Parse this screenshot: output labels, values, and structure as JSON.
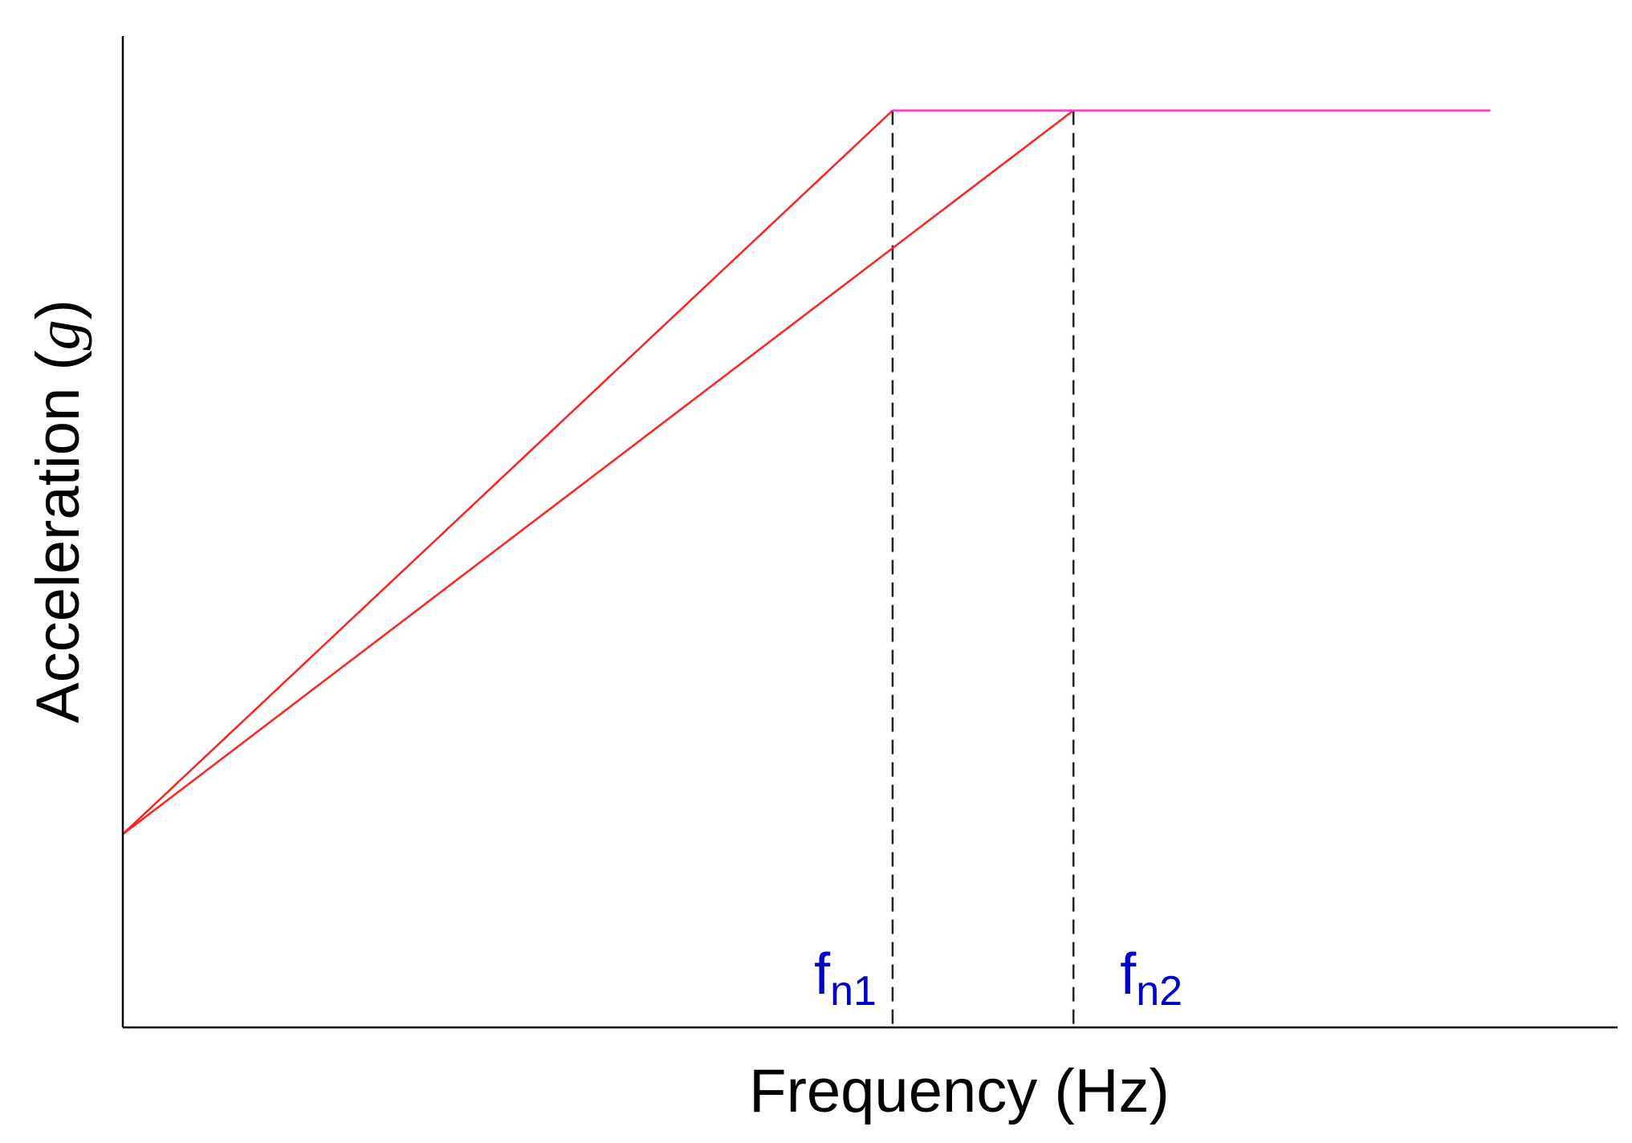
{
  "chart_data": {
    "type": "line",
    "title": "",
    "xlabel": "Frequency (Hz)",
    "ylabel": {
      "prefix": "Acceleration (",
      "symbol": "g",
      "suffix": ")"
    },
    "xlim": [
      0,
      1
    ],
    "ylim": [
      0,
      1
    ],
    "grid": false,
    "legend": "none",
    "series": [
      {
        "color": "#ff2020",
        "x": [
          0,
          0.515
        ],
        "y": [
          0.195,
          0.925
        ]
      },
      {
        "color": "#ff2020",
        "x": [
          0,
          0.636
        ],
        "y": [
          0.195,
          0.925
        ]
      },
      {
        "color": "#ff30d0",
        "x": [
          0.515,
          0.915
        ],
        "y": [
          0.925,
          0.925
        ]
      }
    ],
    "reference_lines": [
      {
        "x": 0.515,
        "style": "dashed",
        "color": "#222222"
      },
      {
        "x": 0.636,
        "style": "dashed",
        "color": "#222222"
      }
    ],
    "annotations": [
      {
        "base": "f",
        "subscript": "n1",
        "x": 0.515,
        "color": "#0000cc"
      },
      {
        "base": "f",
        "subscript": "n2",
        "x": 0.636,
        "color": "#0000cc"
      }
    ]
  }
}
